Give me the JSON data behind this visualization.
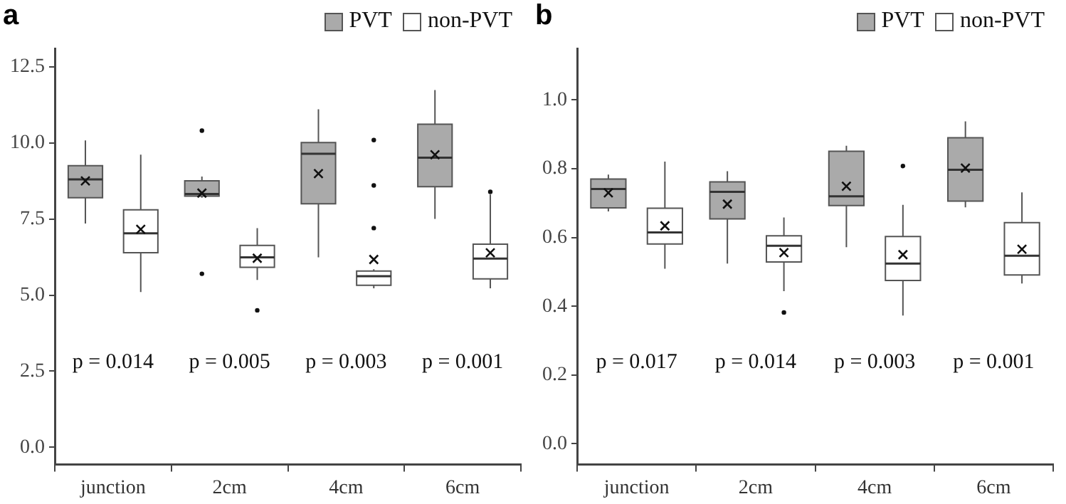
{
  "chart_data": [
    {
      "type": "box",
      "title": "a",
      "categories": [
        "junction",
        "2cm",
        "4cm",
        "6cm"
      ],
      "marker": "cross",
      "legend": "top right",
      "ylim": [
        -0.56,
        13.1
      ],
      "yticks": [
        {
          "value": 0,
          "label": "0.0"
        },
        2.5,
        {
          "value": 5,
          "label": "5.0"
        },
        7.5,
        {
          "value": 10,
          "label": "10.0"
        },
        12.5
      ],
      "series": [
        {
          "name": "PVT",
          "color": "#aaaaaa",
          "boxes": [
            {
              "low": 7.35,
              "q1": 8.2,
              "median": 8.8,
              "q3": 9.25,
              "high": 10.08,
              "mean": 8.75
            },
            {
              "low": 8.2,
              "q1": 8.25,
              "median": 8.32,
              "q3": 8.75,
              "high": 8.89,
              "mean": 8.35,
              "outliers": [
                10.4,
                5.7
              ]
            },
            {
              "low": 6.24,
              "q1": 8.0,
              "median": 9.64,
              "q3": 10.01,
              "high": 11.1,
              "mean": 8.99
            },
            {
              "low": 7.5,
              "q1": 8.56,
              "median": 9.51,
              "q3": 10.61,
              "high": 11.73,
              "mean": 9.61
            }
          ]
        },
        {
          "name": "non-PVT",
          "color": "#ffffff",
          "boxes": [
            {
              "low": 5.1,
              "q1": 6.39,
              "median": 7.03,
              "q3": 7.8,
              "high": 9.61,
              "mean": 7.16
            },
            {
              "low": 5.5,
              "q1": 5.91,
              "median": 6.24,
              "q3": 6.63,
              "high": 7.2,
              "mean": 6.21,
              "outliers": [
                4.5
              ]
            },
            {
              "low": 5.22,
              "q1": 5.32,
              "median": 5.62,
              "q3": 5.79,
              "high": 5.85,
              "mean": 6.17,
              "outliers": [
                10.09,
                8.6,
                7.2
              ]
            },
            {
              "low": 5.22,
              "q1": 5.53,
              "median": 6.2,
              "q3": 6.67,
              "high": 8.3,
              "mean": 6.39,
              "outliers": [
                8.39
              ]
            }
          ]
        }
      ],
      "annotations": [
        "p = 0.014",
        "p = 0.005",
        "p = 0.003",
        "p = 0.001"
      ]
    },
    {
      "type": "box",
      "title": "b",
      "categories": [
        "junction",
        "2cm",
        "4cm",
        "6cm"
      ],
      "marker": "cross",
      "legend": "top right",
      "ylim": [
        -0.06,
        1.15
      ],
      "yticks": [
        {
          "value": 0,
          "label": "0.0"
        },
        0.2,
        0.4,
        0.6,
        0.8,
        {
          "value": 1,
          "label": "1.0"
        }
      ],
      "series": [
        {
          "name": "PVT",
          "color": "#aaaaaa",
          "boxes": [
            {
              "low": 0.676,
              "q1": 0.686,
              "median": 0.741,
              "q3": 0.77,
              "high": 0.783,
              "mean": 0.73
            },
            {
              "low": 0.524,
              "q1": 0.654,
              "median": 0.733,
              "q3": 0.762,
              "high": 0.793,
              "mean": 0.697
            },
            {
              "low": 0.572,
              "q1": 0.693,
              "median": 0.72,
              "q3": 0.851,
              "high": 0.867,
              "mean": 0.749
            },
            {
              "low": 0.688,
              "q1": 0.706,
              "median": 0.797,
              "q3": 0.89,
              "high": 0.938,
              "mean": 0.802
            }
          ]
        },
        {
          "name": "non-PVT",
          "color": "#ffffff",
          "boxes": [
            {
              "low": 0.509,
              "q1": 0.581,
              "median": 0.615,
              "q3": 0.685,
              "high": 0.821,
              "mean": 0.634
            },
            {
              "low": 0.444,
              "q1": 0.529,
              "median": 0.576,
              "q3": 0.605,
              "high": 0.658,
              "mean": 0.556,
              "outliers": [
                0.382
              ]
            },
            {
              "low": 0.373,
              "q1": 0.475,
              "median": 0.524,
              "q3": 0.603,
              "high": 0.695,
              "mean": 0.55,
              "outliers": [
                0.808
              ]
            },
            {
              "low": 0.466,
              "q1": 0.491,
              "median": 0.547,
              "q3": 0.643,
              "high": 0.731,
              "mean": 0.566
            }
          ]
        }
      ],
      "annotations": [
        "p = 0.017",
        "p = 0.014",
        "p = 0.003",
        "p = 0.001"
      ]
    }
  ]
}
